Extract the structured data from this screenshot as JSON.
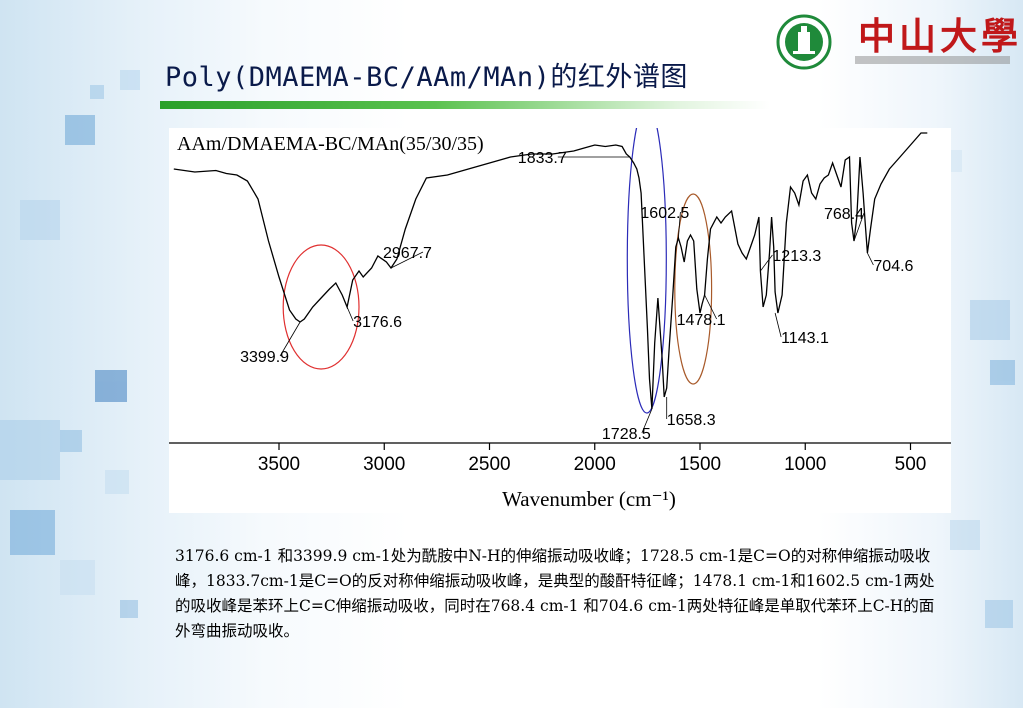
{
  "slide": {
    "title": "Poly(DMAEMA-BC/AAm/MAn)的红外谱图",
    "caption": "3176.6 cm-1 和3399.9 cm-1处为酰胺中N-H的伸缩振动吸收峰；1728.5 cm-1是C=O的对称伸缩振动吸收峰，1833.7cm-1是C=O的反对称伸缩振动吸收峰，是典型的酸酐特征峰；1478.1 cm-1和1602.5 cm-1两处的吸收峰是苯环上C=C伸缩振动吸收，同时在768.4 cm-1 和704.6 cm-1两处特征峰是单取代苯环上C-H的面外弯曲振动吸收。",
    "title_bar_color": "#3cae3c",
    "background_color": "#ffffff"
  },
  "logo": {
    "text": "中山大學",
    "emblem_icon": "university-emblem-icon",
    "text_color": "#c0181a",
    "emblem_color": "#1f8a3a"
  },
  "chart_data": {
    "type": "line",
    "title": "AAm/DMAEMA-BC/MAn(35/30/35)",
    "xlabel": "Wavenumber (cm⁻¹)",
    "ylabel": "",
    "x_reversed": true,
    "xlim": [
      4000,
      400
    ],
    "xticks": [
      3500,
      3000,
      2500,
      2000,
      1500,
      1000,
      500
    ],
    "ylim": [
      0,
      100
    ],
    "grid": false,
    "line_color": "#000000",
    "series": [
      {
        "x": [
          4000,
          3900,
          3800,
          3750,
          3700,
          3650,
          3600,
          3550,
          3500,
          3450,
          3420,
          3400,
          3380,
          3340,
          3300,
          3260,
          3230,
          3200,
          3176.6,
          3150,
          3120,
          3100,
          3060,
          3030,
          2990,
          2967.7,
          2940,
          2900,
          2850,
          2800,
          2700,
          2600,
          2500,
          2400,
          2300,
          2200,
          2100,
          2050,
          2000,
          1950,
          1900,
          1870,
          1850,
          1833.7,
          1815,
          1800,
          1790,
          1780,
          1770,
          1760,
          1750,
          1740,
          1728.5,
          1715,
          1700,
          1690,
          1680,
          1670,
          1658.3,
          1645,
          1630,
          1615,
          1602.5,
          1590,
          1575,
          1560,
          1545,
          1530,
          1515,
          1500,
          1490,
          1478.1,
          1465,
          1450,
          1420,
          1400,
          1380,
          1350,
          1320,
          1300,
          1280,
          1260,
          1240,
          1220,
          1213.3,
          1200,
          1185,
          1170,
          1160,
          1150,
          1143.1,
          1130,
          1110,
          1090,
          1070,
          1050,
          1030,
          1010,
          990,
          970,
          950,
          930,
          910,
          890,
          870,
          850,
          830,
          810,
          790,
          780,
          768.4,
          755,
          740,
          725,
          715,
          704.6,
          690,
          670,
          640,
          600,
          550,
          500,
          450,
          420
        ],
        "y": [
          88,
          87,
          87.5,
          86.5,
          86,
          84,
          78,
          64,
          52,
          41,
          38,
          37,
          38,
          42,
          45,
          48,
          50,
          46,
          42,
          51,
          54,
          52,
          55,
          59,
          57,
          55,
          58,
          68,
          78,
          85,
          86,
          88,
          90,
          92,
          93,
          93,
          94,
          95,
          96,
          95.5,
          96,
          95.5,
          93,
          92,
          90,
          88,
          85,
          80,
          65,
          50,
          35,
          18,
          8,
          30,
          45,
          35,
          25,
          12,
          15,
          30,
          45,
          62,
          65,
          62,
          57,
          64,
          66,
          64,
          48,
          40,
          43,
          46,
          58,
          68,
          72,
          70,
          72,
          74,
          63,
          60,
          58,
          62,
          66,
          72,
          54,
          42,
          46,
          60,
          72,
          62,
          47,
          40,
          46,
          70,
          82,
          80,
          76,
          84,
          86,
          80,
          78,
          83,
          85,
          86,
          90,
          86,
          82,
          91,
          92,
          70,
          64,
          72,
          92,
          80,
          70,
          60,
          68,
          78,
          83,
          88,
          92,
          96,
          100,
          100
        ]
      }
    ],
    "annotations": [
      {
        "text": "3399.9",
        "x": 3399.9,
        "y": 37
      },
      {
        "text": "3176.6",
        "x": 3176.6,
        "y": 42
      },
      {
        "text": "2967.7",
        "x": 2967.7,
        "y": 55
      },
      {
        "text": "1833.7",
        "x": 1833.7,
        "y": 92
      },
      {
        "text": "1728.5",
        "x": 1728.5,
        "y": 8
      },
      {
        "text": "1658.3",
        "x": 1658.3,
        "y": 12
      },
      {
        "text": "1602.5",
        "x": 1602.5,
        "y": 65
      },
      {
        "text": "1478.1",
        "x": 1478.1,
        "y": 46
      },
      {
        "text": "1213.3",
        "x": 1213.3,
        "y": 54
      },
      {
        "text": "1143.1",
        "x": 1143.1,
        "y": 40
      },
      {
        "text": "768.4",
        "x": 768.4,
        "y": 64
      },
      {
        "text": "704.6",
        "x": 704.6,
        "y": 60
      }
    ],
    "highlights": [
      {
        "shape": "ellipse",
        "color": "#e03030",
        "x_range": [
          3480,
          3120
        ]
      },
      {
        "shape": "ellipse",
        "color": "#2b2bb8",
        "x_range": [
          1845,
          1660
        ]
      },
      {
        "shape": "ellipse",
        "color": "#a85a2a",
        "x_range": [
          1620,
          1445
        ]
      }
    ]
  }
}
